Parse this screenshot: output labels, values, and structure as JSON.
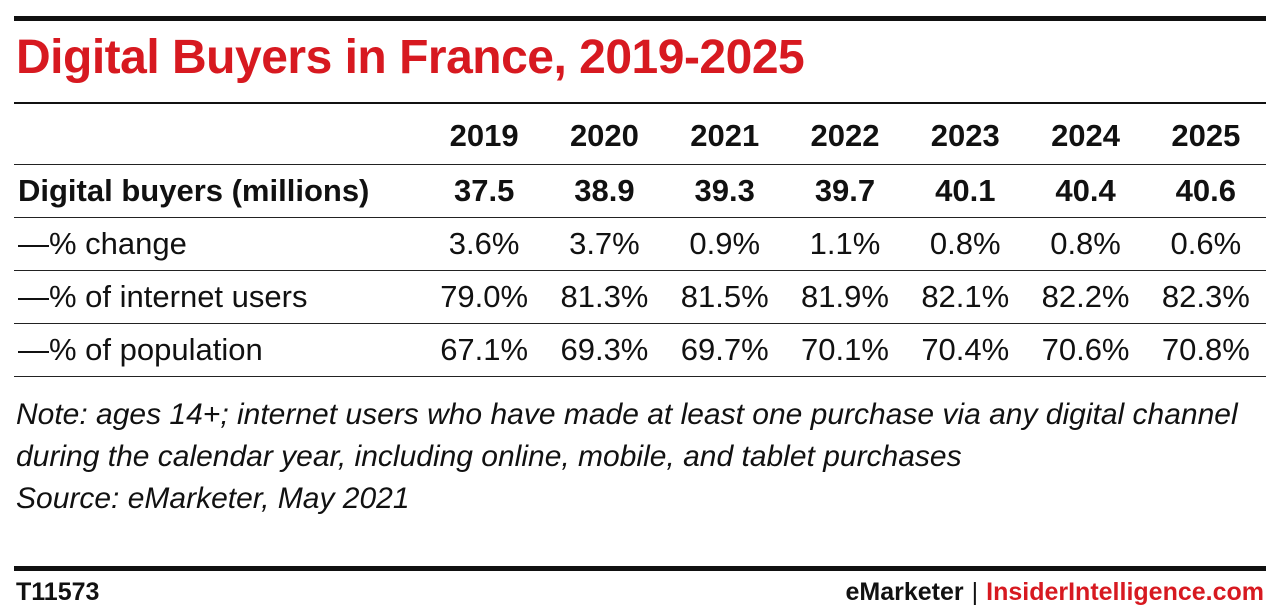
{
  "title": "Digital Buyers in France, 2019-2025",
  "columns": [
    "2019",
    "2020",
    "2021",
    "2022",
    "2023",
    "2024",
    "2025"
  ],
  "rows": [
    {
      "label": "Digital buyers (millions)",
      "values": [
        "37.5",
        "38.9",
        "39.3",
        "39.7",
        "40.1",
        "40.4",
        "40.6"
      ]
    },
    {
      "label": "—% change",
      "values": [
        "3.6%",
        "3.7%",
        "0.9%",
        "1.1%",
        "0.8%",
        "0.8%",
        "0.6%"
      ]
    },
    {
      "label": "—% of internet users",
      "values": [
        "79.0%",
        "81.3%",
        "81.5%",
        "81.9%",
        "82.1%",
        "82.2%",
        "82.3%"
      ]
    },
    {
      "label": "—% of population",
      "values": [
        "67.1%",
        "69.3%",
        "69.7%",
        "70.1%",
        "70.4%",
        "70.6%",
        "70.8%"
      ]
    }
  ],
  "note": "Note: ages 14+; internet users who have made at least one purchase via any digital channel during the calendar year, including online, mobile, and tablet purchases",
  "source": "Source: eMarketer, May 2021",
  "footer": {
    "id": "T11573",
    "brand1": "eMarketer",
    "separator": "|",
    "brand2": "InsiderIntelligence.com"
  },
  "colors": {
    "title": "#d71920",
    "text": "#111111"
  },
  "chart_data": {
    "type": "table",
    "title": "Digital Buyers in France, 2019-2025",
    "columns": [
      "2019",
      "2020",
      "2021",
      "2022",
      "2023",
      "2024",
      "2025"
    ],
    "series": [
      {
        "name": "Digital buyers (millions)",
        "values": [
          37.5,
          38.9,
          39.3,
          39.7,
          40.1,
          40.4,
          40.6
        ]
      },
      {
        "name": "—% change",
        "values": [
          3.6,
          3.7,
          0.9,
          1.1,
          0.8,
          0.8,
          0.6
        ]
      },
      {
        "name": "—% of internet users",
        "values": [
          79.0,
          81.3,
          81.5,
          81.9,
          82.1,
          82.2,
          82.3
        ]
      },
      {
        "name": "—% of population",
        "values": [
          67.1,
          69.3,
          69.7,
          70.1,
          70.4,
          70.6,
          70.8
        ]
      }
    ]
  }
}
